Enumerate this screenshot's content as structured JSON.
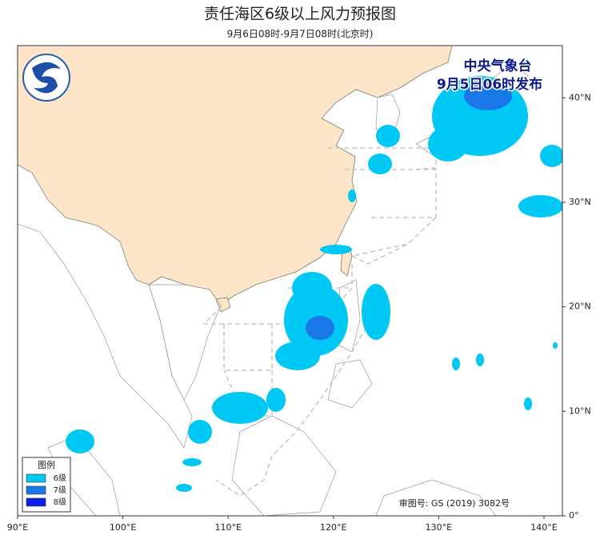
{
  "title": "责任海区6级以上风力预报图",
  "subtitle": "9月6日08时-9月7日08时(北京时)",
  "publisher": {
    "name": "中央气象台",
    "issued": "9月5日06时发布"
  },
  "review_number": "审图号: GS (2019) 3082号",
  "xlim": [
    90,
    141.75
  ],
  "ylim": [
    0,
    45
  ],
  "xticks": [
    {
      "value": 90,
      "label": "90°E"
    },
    {
      "value": 100,
      "label": "100°E"
    },
    {
      "value": 110,
      "label": "110°E"
    },
    {
      "value": 120,
      "label": "120°E"
    },
    {
      "value": 130,
      "label": "130°E"
    },
    {
      "value": 140,
      "label": "140°E"
    }
  ],
  "yticks": [
    {
      "value": 0,
      "label": "0°"
    },
    {
      "value": 10,
      "label": "10°N"
    },
    {
      "value": 20,
      "label": "20°N"
    },
    {
      "value": 30,
      "label": "30°N"
    },
    {
      "value": 40,
      "label": "40°N"
    }
  ],
  "legend": {
    "title": "图例",
    "items": [
      {
        "name": "6级",
        "color": "#00c8f4"
      },
      {
        "name": "7级",
        "color": "#1a78e6"
      },
      {
        "name": "8级",
        "color": "#0a1ee6"
      }
    ]
  }
}
